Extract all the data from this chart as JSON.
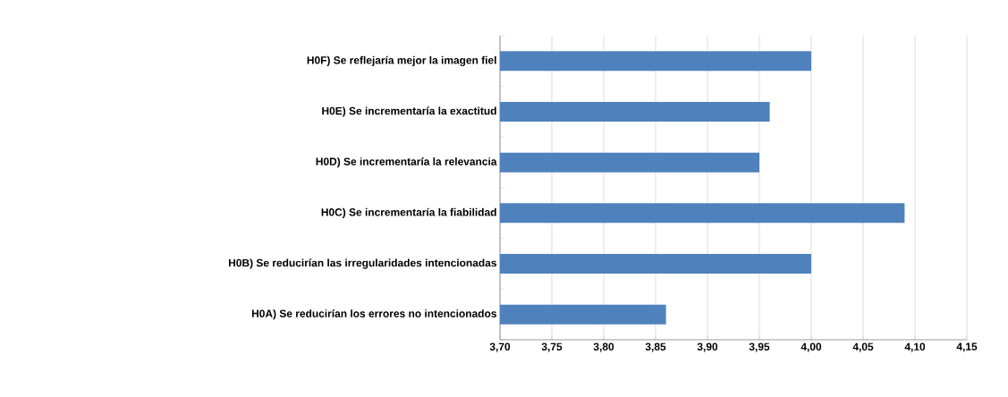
{
  "chart_data": {
    "type": "bar",
    "orientation": "horizontal",
    "categories": [
      "H0F) Se reflejaría mejor la imagen fiel",
      "H0E) Se incrementaría la exactitud",
      "H0D) Se incrementaría la relevancia",
      "H0C) Se incrementaría la fiabilidad",
      "H0B) Se reducirían las irregularidades intencionadas",
      "H0A) Se reducirían los errores no intencionados"
    ],
    "values": [
      4.0,
      3.96,
      3.95,
      4.09,
      4.0,
      3.86
    ],
    "color": "#4f81bd",
    "xlim": [
      3.7,
      4.15
    ],
    "xticks": [
      {
        "value": 3.7,
        "label": "3,70"
      },
      {
        "value": 3.75,
        "label": "3,75"
      },
      {
        "value": 3.8,
        "label": "3,80"
      },
      {
        "value": 3.85,
        "label": "3,85"
      },
      {
        "value": 3.9,
        "label": "3,90"
      },
      {
        "value": 3.95,
        "label": "3,95"
      },
      {
        "value": 4.0,
        "label": "4,00"
      },
      {
        "value": 4.05,
        "label": "4,05"
      },
      {
        "value": 4.1,
        "label": "4,10"
      },
      {
        "value": 4.15,
        "label": "4,15"
      }
    ],
    "grid": "x"
  }
}
